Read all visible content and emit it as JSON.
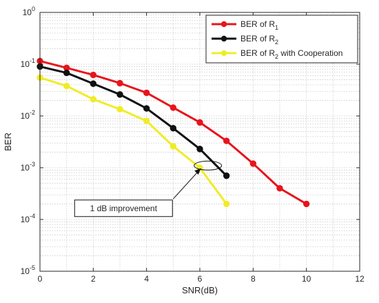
{
  "chart_data": {
    "type": "line",
    "xlabel": "SNR(dB)",
    "ylabel": "BER",
    "xlim": [
      0,
      12
    ],
    "ylim": [
      1e-05,
      1
    ],
    "yscale": "log",
    "grid": true,
    "legend_position": "top-right",
    "x_ticks": [
      "0",
      "2",
      "4",
      "6",
      "8",
      "10",
      "12"
    ],
    "y_ticks": [
      {
        "base": "10",
        "exp": "0"
      },
      {
        "base": "10",
        "exp": "-1"
      },
      {
        "base": "10",
        "exp": "-2"
      },
      {
        "base": "10",
        "exp": "-3"
      },
      {
        "base": "10",
        "exp": "-4"
      },
      {
        "base": "10",
        "exp": "-5"
      }
    ],
    "series": [
      {
        "label_main": "BER of R",
        "label_sub": "1",
        "label_tail": "",
        "color": "#e8141c",
        "x": [
          0,
          1,
          2,
          3,
          4,
          5,
          6,
          7,
          8,
          9,
          10
        ],
        "y": [
          0.115,
          0.085,
          0.062,
          0.043,
          0.028,
          0.0145,
          0.0075,
          0.0033,
          0.0012,
          0.0004,
          0.0002
        ]
      },
      {
        "label_main": "BER of R",
        "label_sub": "2",
        "label_tail": "",
        "color": "#111111",
        "x": [
          0,
          1,
          2,
          3,
          4,
          5,
          6,
          7
        ],
        "y": [
          0.09,
          0.068,
          0.042,
          0.026,
          0.014,
          0.0058,
          0.0023,
          0.0007
        ]
      },
      {
        "label_main": "BER of R",
        "label_sub": "2",
        "label_tail": " with Cooperation",
        "color": "#f0ec28",
        "x": [
          0,
          1,
          2,
          3,
          4,
          5,
          6,
          7
        ],
        "y": [
          0.055,
          0.038,
          0.021,
          0.0135,
          0.008,
          0.0026,
          0.001,
          0.0002
        ]
      }
    ],
    "annotation": {
      "text": "1 dB improvement",
      "ellipse_center": [
        6.3,
        0.0011
      ],
      "arrow_from": [
        5.0,
        0.00025
      ],
      "box_anchor": [
        1.3,
        0.000175
      ]
    }
  }
}
